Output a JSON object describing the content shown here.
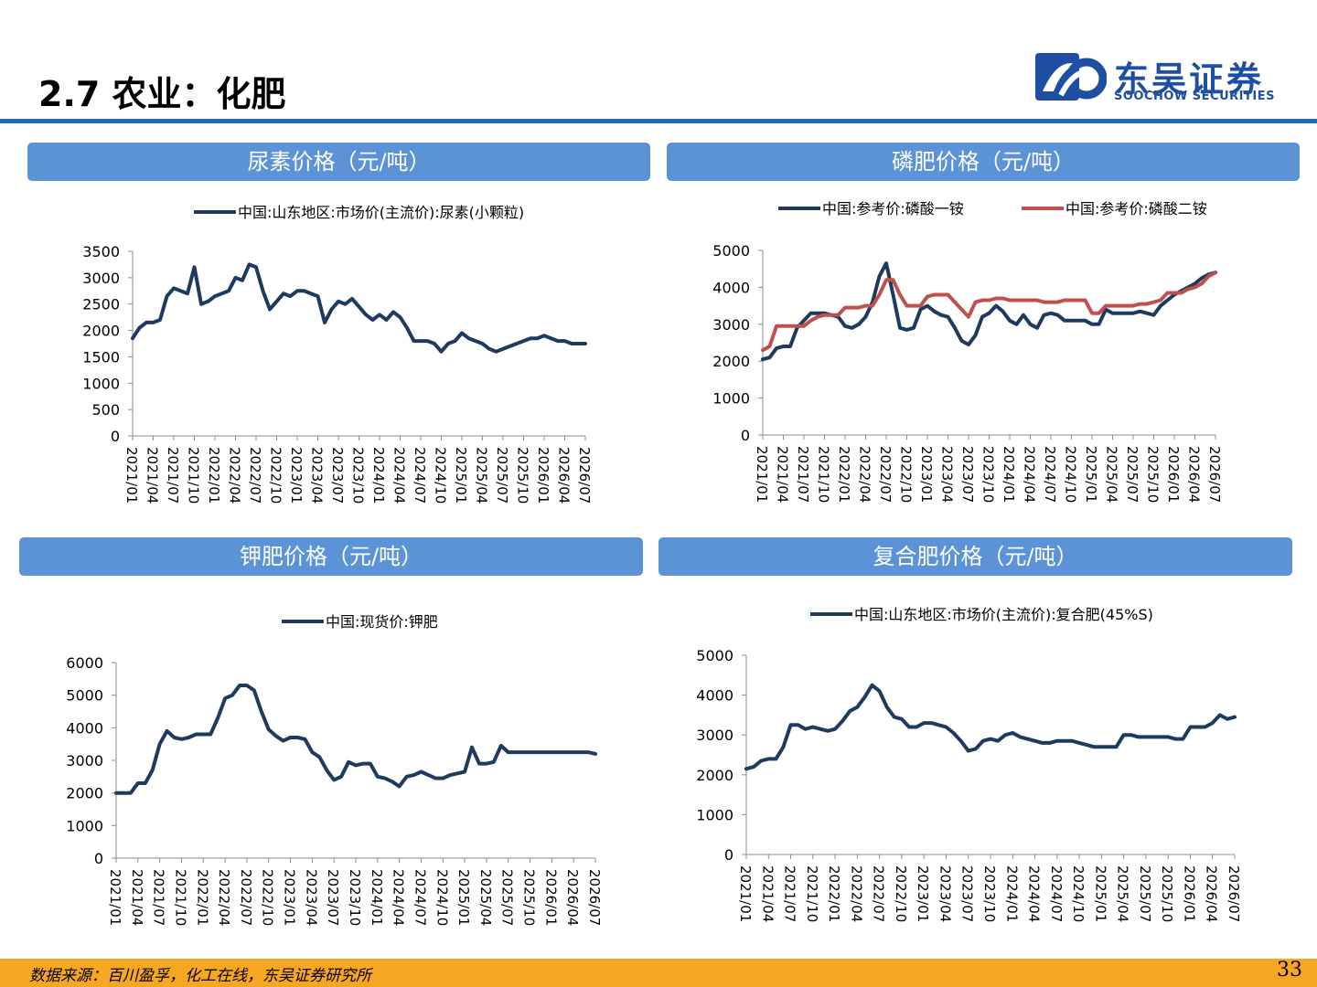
{
  "page": {
    "title": "2.7 农业：化肥",
    "logo_cn": "东吴证券",
    "logo_en": "SOOCHOW SECURITIES",
    "source": "数据来源：百川盈孚，化工在线，东吴证券研究所",
    "page_number": "33",
    "colors": {
      "accent": "#1f6fb4",
      "panel": "#5b93d6",
      "series_navy": "#1e3a5f",
      "series_red": "#c0504d",
      "footer": "#f5a623"
    }
  },
  "chart_data": [
    {
      "id": "urea",
      "type": "line",
      "panel_title": "尿素价格（元/吨）",
      "title": "",
      "xlabel": "",
      "ylabel": "",
      "ylim": [
        0,
        3500
      ],
      "yticks": [
        0,
        500,
        1000,
        1500,
        2000,
        2500,
        3000,
        3500
      ],
      "xticks": [
        "2021/01",
        "2021/04",
        "2021/07",
        "2021/10",
        "2022/01",
        "2022/04",
        "2022/07",
        "2022/10",
        "2023/01",
        "2023/04",
        "2023/07",
        "2023/10",
        "2024/01",
        "2024/04",
        "2024/07",
        "2024/10",
        "2025/01",
        "2025/04",
        "2025/07",
        "2025/10",
        "2026/01",
        "2026/04",
        "2026/07"
      ],
      "legend": "top",
      "series": [
        {
          "name": "中国:山东地区:市场价(主流价):尿素(小颗粒)",
          "color": "#1e3a5f",
          "x": [
            "2021/01",
            "2021/02",
            "2021/03",
            "2021/04",
            "2021/05",
            "2021/06",
            "2021/07",
            "2021/08",
            "2021/09",
            "2021/10",
            "2021/11",
            "2021/12",
            "2022/01",
            "2022/02",
            "2022/03",
            "2022/04",
            "2022/05",
            "2022/06",
            "2022/07",
            "2022/08",
            "2022/09",
            "2022/10",
            "2022/11",
            "2022/12",
            "2023/01",
            "2023/02",
            "2023/03",
            "2023/04",
            "2023/05",
            "2023/06",
            "2023/07",
            "2023/08",
            "2023/09",
            "2023/10",
            "2023/11",
            "2023/12",
            "2024/01",
            "2024/02",
            "2024/03",
            "2024/04",
            "2024/05",
            "2024/06",
            "2024/07",
            "2024/08",
            "2024/09",
            "2024/10",
            "2024/11",
            "2024/12",
            "2025/01",
            "2025/02",
            "2025/03",
            "2025/04",
            "2025/05",
            "2025/06",
            "2025/07",
            "2025/08",
            "2025/09",
            "2025/10",
            "2025/11",
            "2025/12",
            "2026/01",
            "2026/02",
            "2026/03",
            "2026/04",
            "2026/05",
            "2026/06",
            "2026/07"
          ],
          "values": [
            1850,
            2050,
            2150,
            2150,
            2200,
            2650,
            2800,
            2750,
            2700,
            3200,
            2500,
            2550,
            2650,
            2700,
            2750,
            3000,
            2950,
            3250,
            3200,
            2750,
            2400,
            2550,
            2700,
            2650,
            2750,
            2750,
            2700,
            2650,
            2150,
            2400,
            2550,
            2500,
            2600,
            2450,
            2300,
            2200,
            2300,
            2200,
            2350,
            2250,
            2050,
            1800,
            1800,
            1800,
            1750,
            1600,
            1750,
            1800,
            1950,
            1850,
            1800,
            1750,
            1650,
            1600,
            1650,
            1700,
            1750,
            1800,
            1850,
            1850,
            1900,
            1850,
            1800,
            1800,
            1750,
            1750,
            1750
          ]
        }
      ]
    },
    {
      "id": "phosphate",
      "type": "line",
      "panel_title": "磷肥价格（元/吨）",
      "title": "",
      "xlabel": "",
      "ylabel": "",
      "ylim": [
        0,
        5000
      ],
      "yticks": [
        0,
        1000,
        2000,
        3000,
        4000,
        5000
      ],
      "xticks": [
        "2021/01",
        "2021/04",
        "2021/07",
        "2021/10",
        "2022/01",
        "2022/04",
        "2022/07",
        "2022/10",
        "2023/01",
        "2023/04",
        "2023/07",
        "2023/10",
        "2024/01",
        "2024/04",
        "2024/07",
        "2024/10",
        "2025/01",
        "2025/04",
        "2025/07",
        "2025/10",
        "2026/01",
        "2026/04",
        "2026/07"
      ],
      "legend": "top",
      "series": [
        {
          "name": "中国:参考价:磷酸一铵",
          "color": "#1e3a5f",
          "x": [
            "2021/01",
            "2021/02",
            "2021/03",
            "2021/04",
            "2021/05",
            "2021/06",
            "2021/07",
            "2021/08",
            "2021/09",
            "2021/10",
            "2021/11",
            "2021/12",
            "2022/01",
            "2022/02",
            "2022/03",
            "2022/04",
            "2022/05",
            "2022/06",
            "2022/07",
            "2022/08",
            "2022/09",
            "2022/10",
            "2022/11",
            "2022/12",
            "2023/01",
            "2023/02",
            "2023/03",
            "2023/04",
            "2023/05",
            "2023/06",
            "2023/07",
            "2023/08",
            "2023/09",
            "2023/10",
            "2023/11",
            "2023/12",
            "2024/01",
            "2024/02",
            "2024/03",
            "2024/04",
            "2024/05",
            "2024/06",
            "2024/07",
            "2024/08",
            "2024/09",
            "2024/10",
            "2024/11",
            "2024/12",
            "2025/01",
            "2025/02",
            "2025/03",
            "2025/04",
            "2025/05",
            "2025/06",
            "2025/07",
            "2025/08",
            "2025/09",
            "2025/10",
            "2025/11",
            "2025/12",
            "2026/01",
            "2026/02",
            "2026/03",
            "2026/04",
            "2026/05",
            "2026/06",
            "2026/07"
          ],
          "values": [
            2050,
            2100,
            2350,
            2400,
            2400,
            2900,
            3100,
            3300,
            3300,
            3300,
            3250,
            3200,
            2950,
            2900,
            3000,
            3200,
            3600,
            4300,
            4650,
            3800,
            2900,
            2850,
            2900,
            3400,
            3500,
            3350,
            3250,
            3200,
            2900,
            2550,
            2450,
            2700,
            3200,
            3300,
            3500,
            3350,
            3100,
            3000,
            3250,
            3000,
            2900,
            3250,
            3300,
            3250,
            3100,
            3100,
            3100,
            3100,
            3000,
            3000,
            3400,
            3300,
            3300,
            3300,
            3300,
            3350,
            3300,
            3250,
            3500,
            3650,
            3800,
            3900,
            4000,
            4100,
            4250,
            4350,
            4400
          ]
        },
        {
          "name": "中国:参考价:磷酸二铵",
          "color": "#c0504d",
          "x": [
            "2021/01",
            "2021/02",
            "2021/03",
            "2021/04",
            "2021/05",
            "2021/06",
            "2021/07",
            "2021/08",
            "2021/09",
            "2021/10",
            "2021/11",
            "2021/12",
            "2022/01",
            "2022/02",
            "2022/03",
            "2022/04",
            "2022/05",
            "2022/06",
            "2022/07",
            "2022/08",
            "2022/09",
            "2022/10",
            "2022/11",
            "2022/12",
            "2023/01",
            "2023/02",
            "2023/03",
            "2023/04",
            "2023/05",
            "2023/06",
            "2023/07",
            "2023/08",
            "2023/09",
            "2023/10",
            "2023/11",
            "2023/12",
            "2024/01",
            "2024/02",
            "2024/03",
            "2024/04",
            "2024/05",
            "2024/06",
            "2024/07",
            "2024/08",
            "2024/09",
            "2024/10",
            "2024/11",
            "2024/12",
            "2025/01",
            "2025/02",
            "2025/03",
            "2025/04",
            "2025/05",
            "2025/06",
            "2025/07",
            "2025/08",
            "2025/09",
            "2025/10",
            "2025/11",
            "2025/12",
            "2026/01",
            "2026/02",
            "2026/03",
            "2026/04",
            "2026/05",
            "2026/06",
            "2026/07"
          ],
          "values": [
            2300,
            2400,
            2950,
            2950,
            2950,
            2950,
            2950,
            3100,
            3200,
            3250,
            3250,
            3250,
            3450,
            3450,
            3450,
            3500,
            3500,
            3800,
            4200,
            4200,
            3800,
            3500,
            3500,
            3500,
            3750,
            3800,
            3800,
            3800,
            3600,
            3400,
            3200,
            3600,
            3650,
            3650,
            3700,
            3700,
            3650,
            3650,
            3650,
            3650,
            3650,
            3600,
            3600,
            3600,
            3650,
            3650,
            3650,
            3650,
            3300,
            3300,
            3500,
            3500,
            3500,
            3500,
            3500,
            3550,
            3550,
            3600,
            3650,
            3850,
            3850,
            3850,
            3950,
            4000,
            4100,
            4300,
            4400
          ]
        }
      ]
    },
    {
      "id": "potash",
      "type": "line",
      "panel_title": "钾肥价格（元/吨）",
      "title": "",
      "xlabel": "",
      "ylabel": "",
      "ylim": [
        0,
        6000
      ],
      "yticks": [
        0,
        1000,
        2000,
        3000,
        4000,
        5000,
        6000
      ],
      "xticks": [
        "2021/01",
        "2021/04",
        "2021/07",
        "2021/10",
        "2022/01",
        "2022/04",
        "2022/07",
        "2022/10",
        "2023/01",
        "2023/04",
        "2023/07",
        "2023/10",
        "2024/01",
        "2024/04",
        "2024/07",
        "2024/10",
        "2025/01",
        "2025/04",
        "2025/07",
        "2025/10",
        "2026/01",
        "2026/04",
        "2026/07"
      ],
      "legend": "top",
      "series": [
        {
          "name": "中国:现货价:钾肥",
          "color": "#1e3a5f",
          "x": [
            "2021/01",
            "2021/02",
            "2021/03",
            "2021/04",
            "2021/05",
            "2021/06",
            "2021/07",
            "2021/08",
            "2021/09",
            "2021/10",
            "2021/11",
            "2021/12",
            "2022/01",
            "2022/02",
            "2022/03",
            "2022/04",
            "2022/05",
            "2022/06",
            "2022/07",
            "2022/08",
            "2022/09",
            "2022/10",
            "2022/11",
            "2022/12",
            "2023/01",
            "2023/02",
            "2023/03",
            "2023/04",
            "2023/05",
            "2023/06",
            "2023/07",
            "2023/08",
            "2023/09",
            "2023/10",
            "2023/11",
            "2023/12",
            "2024/01",
            "2024/02",
            "2024/03",
            "2024/04",
            "2024/05",
            "2024/06",
            "2024/07",
            "2024/08",
            "2024/09",
            "2024/10",
            "2024/11",
            "2024/12",
            "2025/01",
            "2025/02",
            "2025/03",
            "2025/04",
            "2025/05",
            "2025/06",
            "2025/07",
            "2025/08",
            "2025/09",
            "2025/10",
            "2025/11",
            "2025/12",
            "2026/01",
            "2026/02",
            "2026/03",
            "2026/04",
            "2026/05",
            "2026/06",
            "2026/07"
          ],
          "values": [
            2000,
            2000,
            2000,
            2300,
            2300,
            2700,
            3500,
            3900,
            3700,
            3650,
            3700,
            3800,
            3800,
            3800,
            4300,
            4900,
            5000,
            5300,
            5300,
            5150,
            4500,
            3950,
            3750,
            3600,
            3700,
            3700,
            3650,
            3250,
            3100,
            2700,
            2400,
            2500,
            2950,
            2850,
            2900,
            2900,
            2500,
            2450,
            2350,
            2200,
            2500,
            2550,
            2650,
            2550,
            2450,
            2450,
            2550,
            2600,
            2650,
            3400,
            2900,
            2900,
            2950,
            3450,
            3250,
            3250,
            3250,
            3250,
            3250,
            3250,
            3250,
            3250,
            3250,
            3250,
            3250,
            3250,
            3200
          ]
        }
      ]
    },
    {
      "id": "compound",
      "type": "line",
      "panel_title": "复合肥价格（元/吨）",
      "title": "",
      "xlabel": "",
      "ylabel": "",
      "ylim": [
        0,
        5000
      ],
      "yticks": [
        0,
        1000,
        2000,
        3000,
        4000,
        5000
      ],
      "xticks": [
        "2021/01",
        "2021/04",
        "2021/07",
        "2021/10",
        "2022/01",
        "2022/04",
        "2022/07",
        "2022/10",
        "2023/01",
        "2023/04",
        "2023/07",
        "2023/10",
        "2024/01",
        "2024/04",
        "2024/07",
        "2024/10",
        "2025/01",
        "2025/04",
        "2025/07",
        "2025/10",
        "2026/01",
        "2026/04",
        "2026/07"
      ],
      "legend": "top",
      "series": [
        {
          "name": "中国:山东地区:市场价(主流价):复合肥(45%S)",
          "color": "#1e3a5f",
          "x": [
            "2021/01",
            "2021/02",
            "2021/03",
            "2021/04",
            "2021/05",
            "2021/06",
            "2021/07",
            "2021/08",
            "2021/09",
            "2021/10",
            "2021/11",
            "2021/12",
            "2022/01",
            "2022/02",
            "2022/03",
            "2022/04",
            "2022/05",
            "2022/06",
            "2022/07",
            "2022/08",
            "2022/09",
            "2022/10",
            "2022/11",
            "2022/12",
            "2023/01",
            "2023/02",
            "2023/03",
            "2023/04",
            "2023/05",
            "2023/06",
            "2023/07",
            "2023/08",
            "2023/09",
            "2023/10",
            "2023/11",
            "2023/12",
            "2024/01",
            "2024/02",
            "2024/03",
            "2024/04",
            "2024/05",
            "2024/06",
            "2024/07",
            "2024/08",
            "2024/09",
            "2024/10",
            "2024/11",
            "2024/12",
            "2025/01",
            "2025/02",
            "2025/03",
            "2025/04",
            "2025/05",
            "2025/06",
            "2025/07",
            "2025/08",
            "2025/09",
            "2025/10",
            "2025/11",
            "2025/12",
            "2026/01",
            "2026/02",
            "2026/03",
            "2026/04",
            "2026/05",
            "2026/06",
            "2026/07"
          ],
          "values": [
            2150,
            2200,
            2350,
            2400,
            2400,
            2700,
            3250,
            3250,
            3150,
            3200,
            3150,
            3100,
            3150,
            3350,
            3600,
            3700,
            3950,
            4250,
            4100,
            3700,
            3450,
            3400,
            3200,
            3200,
            3300,
            3300,
            3250,
            3200,
            3050,
            2850,
            2600,
            2650,
            2850,
            2900,
            2850,
            3000,
            3050,
            2950,
            2900,
            2850,
            2800,
            2800,
            2850,
            2850,
            2850,
            2800,
            2750,
            2700,
            2700,
            2700,
            2700,
            3000,
            3000,
            2950,
            2950,
            2950,
            2950,
            2950,
            2900,
            2900,
            3200,
            3200,
            3200,
            3300,
            3500,
            3400,
            3450
          ]
        }
      ]
    }
  ]
}
